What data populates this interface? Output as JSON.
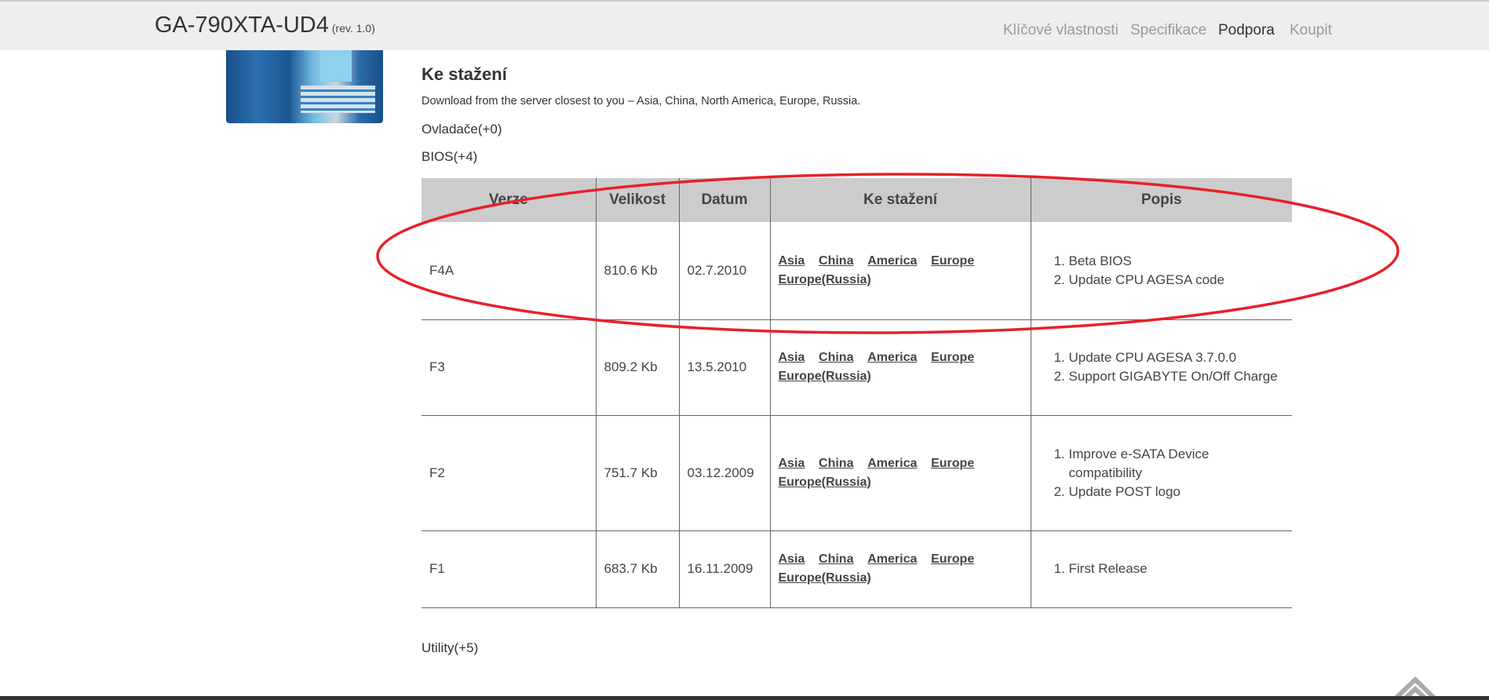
{
  "header": {
    "product": "GA-790XTA-UD4",
    "revision": "(rev. 1.0)",
    "nav": [
      {
        "label": "Klíčové vlastnosti",
        "active": false
      },
      {
        "label": "Specifikace",
        "active": false
      },
      {
        "label": "Podpora",
        "active": true
      },
      {
        "label": "Koupit",
        "active": false
      }
    ]
  },
  "main": {
    "heading": "Ke stažení",
    "intro": "Download from the server closest to you – Asia, China, North America, Europe, Russia.",
    "categories": {
      "drivers": "Ovladače(+0)",
      "bios": "BIOS(+4)",
      "utility": "Utility(+5)"
    },
    "table": {
      "headers": [
        "Verze",
        "Velikost",
        "Datum",
        "Ke stažení",
        "Popis"
      ],
      "rows": [
        {
          "version": "F4A",
          "size": "810.6 Kb",
          "date": "02.7.2010",
          "links": [
            "Asia",
            "China",
            "America",
            "Europe",
            "Europe(Russia)"
          ],
          "description": [
            "Beta BIOS",
            "Update CPU AGESA code"
          ]
        },
        {
          "version": "F3",
          "size": "809.2 Kb",
          "date": "13.5.2010",
          "links": [
            "Asia",
            "China",
            "America",
            "Europe",
            "Europe(Russia)"
          ],
          "description": [
            "Update CPU AGESA 3.7.0.0",
            "Support GIGABYTE On/Off Charge"
          ]
        },
        {
          "version": "F2",
          "size": "751.7 Kb",
          "date": "03.12.2009",
          "links": [
            "Asia",
            "China",
            "America",
            "Europe",
            "Europe(Russia)"
          ],
          "description": [
            "Improve e-SATA Device compatibility",
            "Update POST logo"
          ]
        },
        {
          "version": "F1",
          "size": "683.7 Kb",
          "date": "16.11.2009",
          "links": [
            "Asia",
            "China",
            "America",
            "Europe",
            "Europe(Russia)"
          ],
          "description": [
            "First Release"
          ]
        }
      ]
    }
  },
  "annotation": {
    "color": "#e8202a",
    "shape": "ellipse-around-first-row"
  },
  "icons": {
    "scroll_top": "double-chevron-up-icon"
  }
}
